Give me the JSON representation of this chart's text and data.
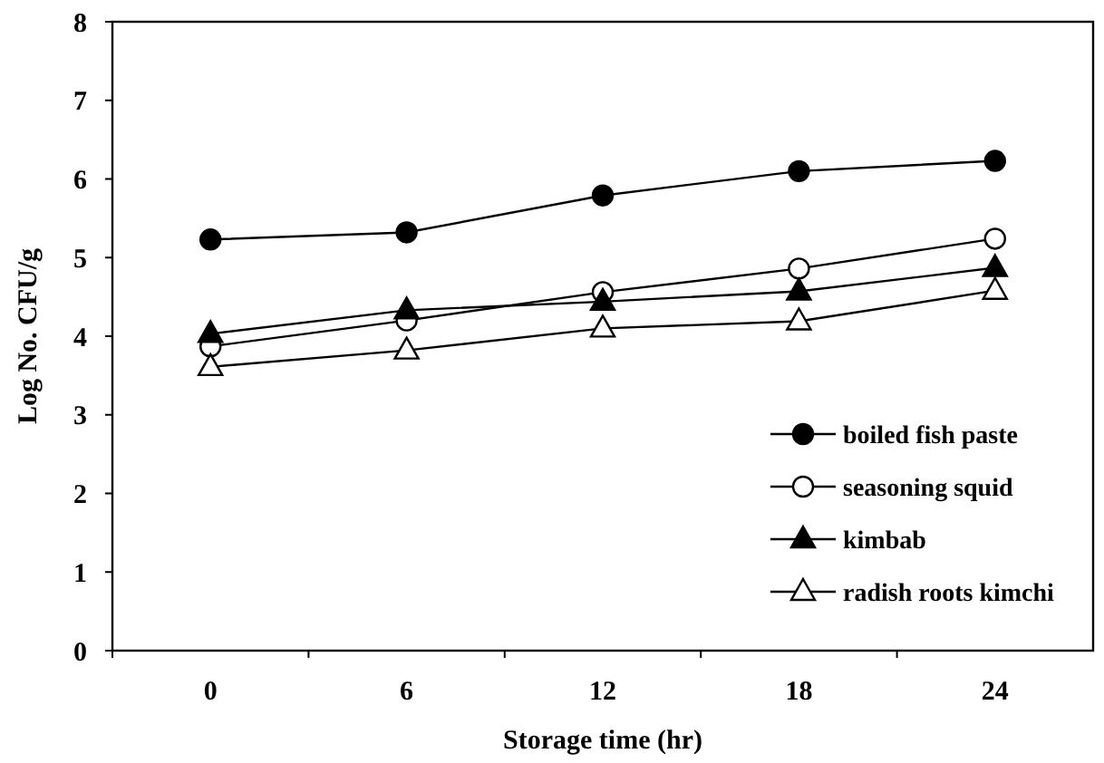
{
  "chart_data": {
    "type": "line",
    "xlabel": "Storage time (hr)",
    "ylabel": "Log No. CFU/g",
    "categories": [
      "0",
      "6",
      "12",
      "18",
      "24"
    ],
    "ylim": [
      0,
      8
    ],
    "yticks": [
      0,
      1,
      2,
      3,
      4,
      5,
      6,
      7,
      8
    ],
    "grid": false,
    "legend": "bottom right",
    "line_style": "solid",
    "series": [
      {
        "name": "boiled fish paste",
        "color": "#000000",
        "marker": "circle",
        "values": [
          5.23,
          5.32,
          5.79,
          6.1,
          6.23
        ]
      },
      {
        "name": "seasoning squid",
        "color": "#000000",
        "marker": "circle-open",
        "values": [
          3.87,
          4.2,
          4.56,
          4.86,
          5.24
        ]
      },
      {
        "name": "kimbab",
        "color": "#000000",
        "marker": "triangle",
        "values": [
          4.03,
          4.33,
          4.44,
          4.57,
          4.87
        ]
      },
      {
        "name": "radish roots kimchi",
        "color": "#000000",
        "marker": "triangle-open",
        "values": [
          3.61,
          3.82,
          4.1,
          4.19,
          4.58
        ]
      }
    ]
  }
}
